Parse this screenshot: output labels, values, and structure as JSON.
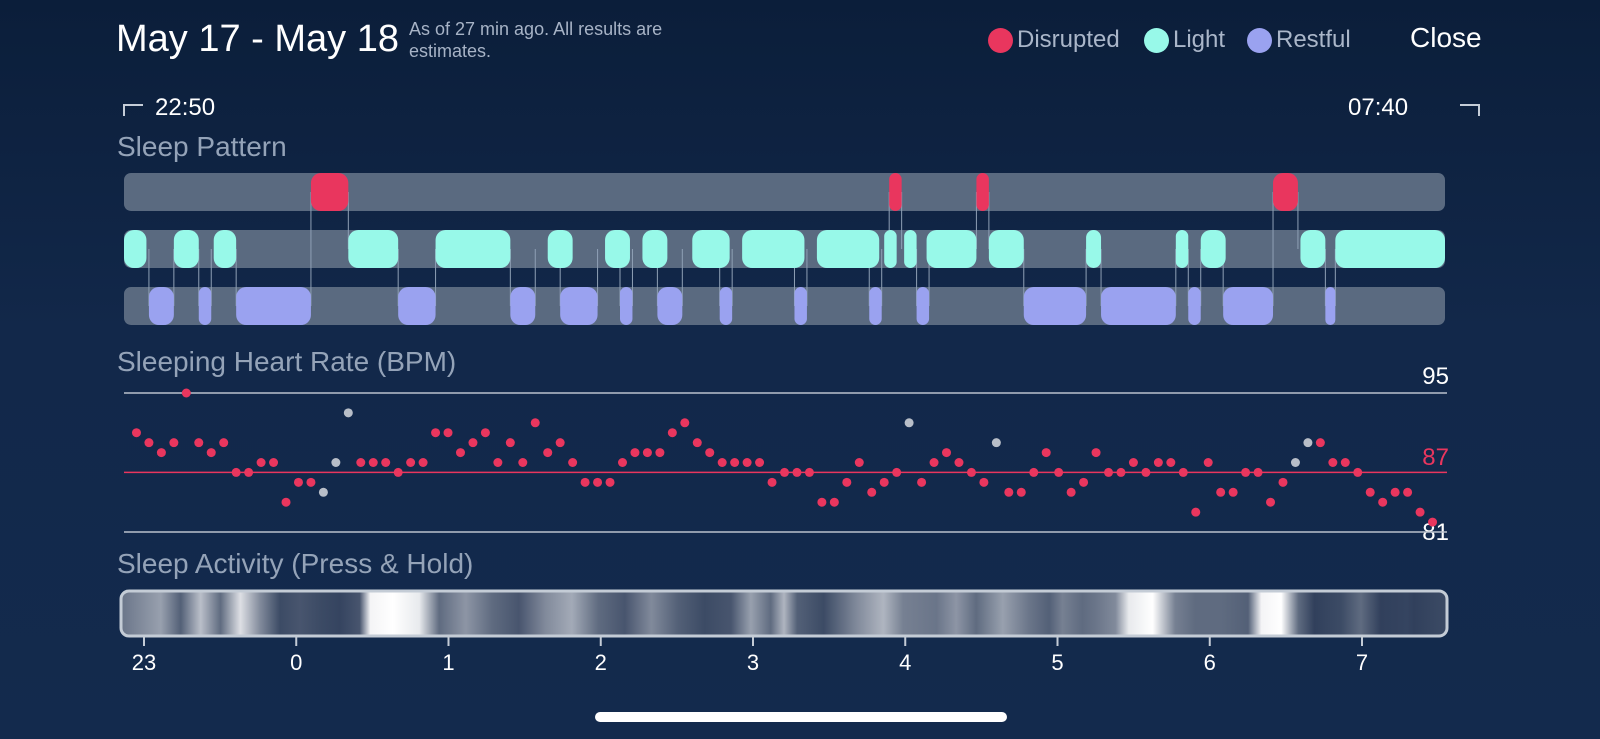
{
  "header": {
    "title": "May 17 - May 18",
    "as_of": "As of 27 min ago. All results are estimates.",
    "close_label": "Close"
  },
  "legend": [
    {
      "label": "Disrupted",
      "color": "#e9365e"
    },
    {
      "label": "Light",
      "color": "#98f9e9"
    },
    {
      "label": "Restful",
      "color": "#9aa2f0"
    }
  ],
  "time_range": {
    "start": "22:50",
    "end": "07:40"
  },
  "sections": {
    "sleep_pattern": "Sleep Pattern",
    "heart_rate": "Sleeping Heart Rate (BPM)",
    "activity": "Sleep Activity (Press & Hold)"
  },
  "colors": {
    "disrupted": "#e9365e",
    "light": "#98f9e9",
    "restful": "#9aa2f0",
    "track": "#5a6a80",
    "hr_point": "#e9365e",
    "hr_gray": "#b8bec8",
    "avg_line": "#e9365e"
  },
  "sleep_pattern": {
    "start_hour": -1.1667,
    "end_hour": 7.6667,
    "disrupted": [
      [
        0.0833,
        0.3333
      ],
      [
        3.95,
        4.0333
      ],
      [
        4.5333,
        4.6167
      ],
      [
        6.5167,
        6.6833
      ]
    ],
    "light": [
      [
        -1.1667,
        -1.0167
      ],
      [
        -0.8333,
        -0.6667
      ],
      [
        -0.5667,
        -0.4167
      ],
      [
        0.3333,
        0.6667
      ],
      [
        0.9167,
        1.4167
      ],
      [
        1.6667,
        1.8333
      ],
      [
        2.05,
        2.2167
      ],
      [
        2.3,
        2.4667
      ],
      [
        2.6333,
        2.8833
      ],
      [
        2.9667,
        3.3833
      ],
      [
        3.4667,
        3.8833
      ],
      [
        3.9167,
        4.0
      ],
      [
        4.05,
        4.1333
      ],
      [
        4.2,
        4.5333
      ],
      [
        4.6167,
        4.85
      ],
      [
        5.2667,
        5.3667
      ],
      [
        5.8667,
        5.95
      ],
      [
        6.0333,
        6.2
      ],
      [
        6.7,
        6.8667
      ],
      [
        6.9333,
        7.6667
      ]
    ],
    "restful": [
      [
        -1.0,
        -0.8333
      ],
      [
        -0.6667,
        -0.5833
      ],
      [
        -0.4167,
        0.0833
      ],
      [
        0.6667,
        0.9167
      ],
      [
        1.4167,
        1.5833
      ],
      [
        1.75,
        2.0
      ],
      [
        2.15,
        2.2333
      ],
      [
        2.4,
        2.5667
      ],
      [
        2.8167,
        2.9
      ],
      [
        3.3167,
        3.4
      ],
      [
        3.8167,
        3.9
      ],
      [
        4.1333,
        4.2167
      ],
      [
        4.85,
        5.2667
      ],
      [
        5.3667,
        5.8667
      ],
      [
        5.95,
        6.0333
      ],
      [
        6.1833,
        6.5167
      ],
      [
        6.8667,
        6.9333
      ]
    ]
  },
  "heart_rate": {
    "max_label": "95",
    "avg_label": "87",
    "min_label": "81",
    "max": 95,
    "avg": 87,
    "min": 81,
    "points": [
      [
        -1.0833,
        91
      ],
      [
        -1.0,
        90
      ],
      [
        -0.9167,
        89
      ],
      [
        -0.8333,
        90
      ],
      [
        -0.75,
        95
      ],
      [
        -0.6667,
        90
      ],
      [
        -0.5833,
        89
      ],
      [
        -0.5,
        90
      ],
      [
        -0.4167,
        87
      ],
      [
        -0.3333,
        87
      ],
      [
        -0.25,
        88
      ],
      [
        -0.1667,
        88
      ],
      [
        -0.0833,
        84
      ],
      [
        -0.0,
        86
      ],
      [
        0.0833,
        86
      ],
      [
        0.1667,
        85,
        "g"
      ],
      [
        0.25,
        88,
        "g"
      ],
      [
        0.3333,
        93,
        "g"
      ],
      [
        0.4167,
        88
      ],
      [
        0.5,
        88
      ],
      [
        0.5833,
        88
      ],
      [
        0.6667,
        87
      ],
      [
        0.75,
        88
      ],
      [
        0.8333,
        88
      ],
      [
        0.9167,
        91
      ],
      [
        1.0,
        91
      ],
      [
        1.0833,
        89
      ],
      [
        1.1667,
        90
      ],
      [
        1.25,
        91
      ],
      [
        1.3333,
        88
      ],
      [
        1.4167,
        90
      ],
      [
        1.5,
        88
      ],
      [
        1.5833,
        92
      ],
      [
        1.6667,
        89
      ],
      [
        1.75,
        90
      ],
      [
        1.8333,
        88
      ],
      [
        1.9167,
        86
      ],
      [
        2.0,
        86
      ],
      [
        2.0833,
        86
      ],
      [
        2.1667,
        88
      ],
      [
        2.25,
        89
      ],
      [
        2.3333,
        89
      ],
      [
        2.4167,
        89
      ],
      [
        2.5,
        91
      ],
      [
        2.5833,
        92
      ],
      [
        2.6667,
        90
      ],
      [
        2.75,
        89
      ],
      [
        2.8333,
        88
      ],
      [
        2.9167,
        88
      ],
      [
        3.0,
        88
      ],
      [
        3.0833,
        88
      ],
      [
        3.1667,
        86
      ],
      [
        3.25,
        87
      ],
      [
        3.3333,
        87
      ],
      [
        3.4167,
        87
      ],
      [
        3.5,
        84
      ],
      [
        3.5833,
        84
      ],
      [
        3.6667,
        86
      ],
      [
        3.75,
        88
      ],
      [
        3.8333,
        85
      ],
      [
        3.9167,
        86
      ],
      [
        4.0,
        87
      ],
      [
        4.0833,
        92,
        "g"
      ],
      [
        4.1667,
        86
      ],
      [
        4.25,
        88
      ],
      [
        4.3333,
        89
      ],
      [
        4.4167,
        88
      ],
      [
        4.5,
        87
      ],
      [
        4.5833,
        86
      ],
      [
        4.6667,
        90,
        "g"
      ],
      [
        4.75,
        85
      ],
      [
        4.8333,
        85
      ],
      [
        4.9167,
        87
      ],
      [
        5.0,
        89
      ],
      [
        5.0833,
        87
      ],
      [
        5.1667,
        85
      ],
      [
        5.25,
        86
      ],
      [
        5.3333,
        89
      ],
      [
        5.4167,
        87
      ],
      [
        5.5,
        87
      ],
      [
        5.5833,
        88
      ],
      [
        5.6667,
        87
      ],
      [
        5.75,
        88
      ],
      [
        5.8333,
        88
      ],
      [
        5.9167,
        87
      ],
      [
        6.0,
        83
      ],
      [
        6.0833,
        88
      ],
      [
        6.1667,
        85
      ],
      [
        6.25,
        85
      ],
      [
        6.3333,
        87
      ],
      [
        6.4167,
        87
      ],
      [
        6.5,
        84
      ],
      [
        6.5833,
        86
      ],
      [
        6.6667,
        88,
        "g"
      ],
      [
        6.75,
        90,
        "g"
      ],
      [
        6.8333,
        90
      ],
      [
        6.9167,
        88
      ],
      [
        7.0,
        88
      ],
      [
        7.0833,
        87
      ],
      [
        7.1667,
        85
      ],
      [
        7.25,
        84
      ],
      [
        7.3333,
        85
      ],
      [
        7.4167,
        85
      ],
      [
        7.5,
        83
      ],
      [
        7.5833,
        82
      ]
    ]
  },
  "activity": {
    "stops": [
      [
        0.0,
        0.35
      ],
      [
        0.03,
        0.55
      ],
      [
        0.045,
        0.25
      ],
      [
        0.06,
        0.7
      ],
      [
        0.075,
        0.3
      ],
      [
        0.09,
        0.85
      ],
      [
        0.105,
        0.45
      ],
      [
        0.12,
        0.15
      ],
      [
        0.135,
        0.2
      ],
      [
        0.15,
        0.15
      ],
      [
        0.165,
        0.12
      ],
      [
        0.18,
        0.2
      ],
      [
        0.188,
        0.95
      ],
      [
        0.205,
        1.0
      ],
      [
        0.225,
        0.9
      ],
      [
        0.24,
        0.3
      ],
      [
        0.26,
        0.5
      ],
      [
        0.28,
        0.3
      ],
      [
        0.3,
        0.2
      ],
      [
        0.32,
        0.45
      ],
      [
        0.34,
        0.6
      ],
      [
        0.36,
        0.3
      ],
      [
        0.38,
        0.2
      ],
      [
        0.4,
        0.45
      ],
      [
        0.42,
        0.25
      ],
      [
        0.44,
        0.15
      ],
      [
        0.46,
        0.2
      ],
      [
        0.475,
        0.55
      ],
      [
        0.49,
        0.3
      ],
      [
        0.5,
        0.65
      ],
      [
        0.51,
        0.25
      ],
      [
        0.53,
        0.15
      ],
      [
        0.555,
        0.45
      ],
      [
        0.575,
        0.65
      ],
      [
        0.59,
        0.4
      ],
      [
        0.615,
        0.35
      ],
      [
        0.63,
        0.5
      ],
      [
        0.645,
        0.3
      ],
      [
        0.665,
        0.55
      ],
      [
        0.685,
        0.35
      ],
      [
        0.7,
        0.25
      ],
      [
        0.71,
        0.4
      ],
      [
        0.725,
        0.3
      ],
      [
        0.735,
        0.35
      ],
      [
        0.75,
        0.45
      ],
      [
        0.76,
        0.9
      ],
      [
        0.778,
        1.0
      ],
      [
        0.795,
        0.4
      ],
      [
        0.81,
        0.3
      ],
      [
        0.83,
        0.3
      ],
      [
        0.85,
        0.25
      ],
      [
        0.86,
        0.95
      ],
      [
        0.875,
        1.0
      ],
      [
        0.888,
        0.3
      ],
      [
        0.9,
        0.1
      ],
      [
        0.92,
        0.15
      ],
      [
        0.935,
        0.3
      ],
      [
        0.95,
        0.1
      ],
      [
        0.97,
        0.12
      ],
      [
        0.975,
        0.1
      ],
      [
        1.0,
        0.15
      ]
    ],
    "ticks": [
      [
        "23",
        -1.0
      ],
      [
        "0",
        0.0
      ],
      [
        "1",
        1.0
      ],
      [
        "2",
        2.0
      ],
      [
        "3",
        3.0
      ],
      [
        "4",
        4.0
      ],
      [
        "5",
        5.0
      ],
      [
        "6",
        6.0
      ],
      [
        "7",
        7.0
      ]
    ]
  }
}
